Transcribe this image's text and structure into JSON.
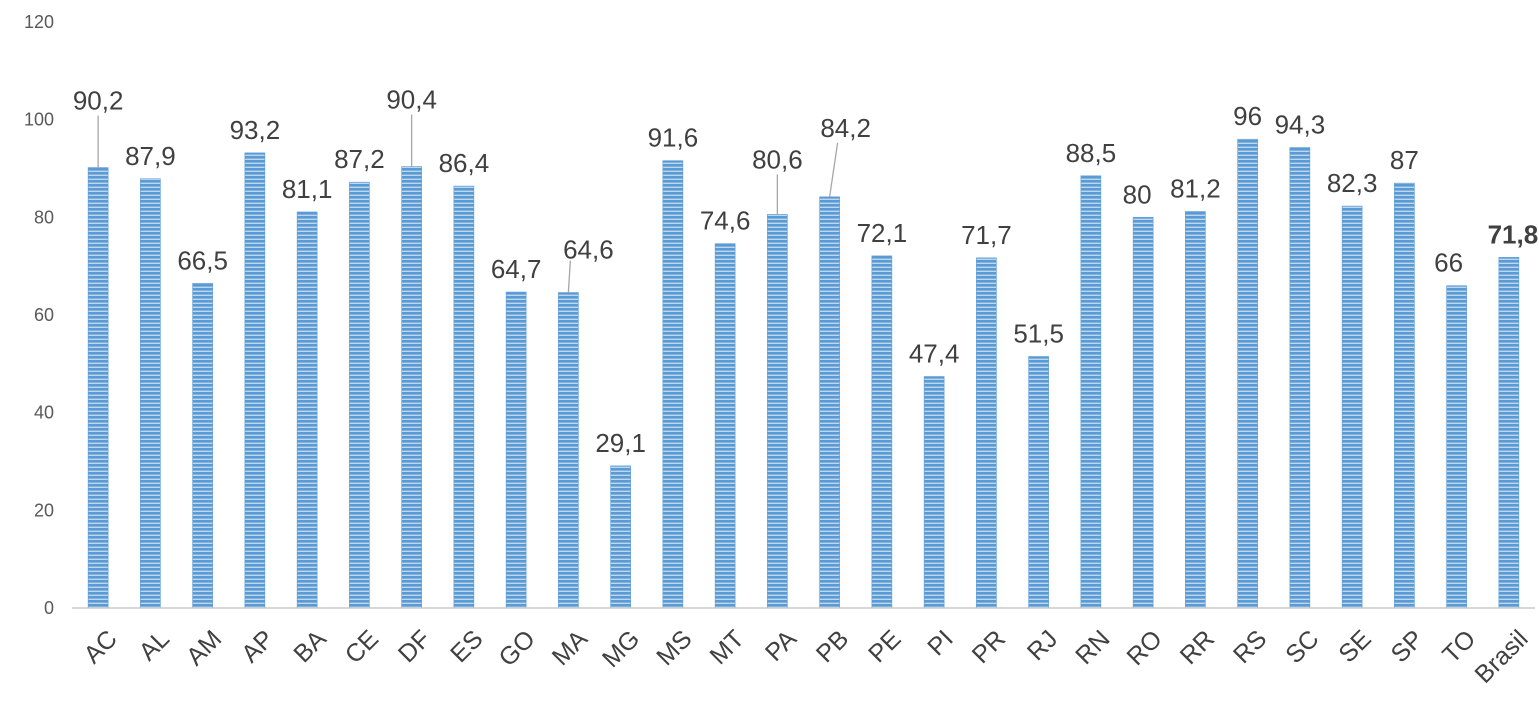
{
  "chart_data": {
    "type": "bar",
    "title": "",
    "xlabel": "",
    "ylabel": "",
    "ylim": [
      0,
      120
    ],
    "yticks": [
      "0",
      "20",
      "40",
      "60",
      "80",
      "100",
      "120"
    ],
    "grid": false,
    "legend": "none",
    "bar_color": "#5B9BD5",
    "bar_stripe_color": "#ffffff",
    "categories": [
      "AC",
      "AL",
      "AM",
      "AP",
      "BA",
      "CE",
      "DF",
      "ES",
      "GO",
      "MA",
      "MG",
      "MS",
      "MT",
      "PA",
      "PB",
      "PE",
      "PI",
      "PR",
      "RJ",
      "RN",
      "RO",
      "RR",
      "RS",
      "SC",
      "SE",
      "SP",
      "TO",
      "Brasil"
    ],
    "values": [
      90.2,
      87.9,
      66.5,
      93.2,
      81.1,
      87.2,
      90.4,
      86.4,
      64.7,
      64.6,
      29.1,
      91.6,
      74.6,
      80.6,
      84.2,
      72.1,
      47.4,
      71.7,
      51.5,
      88.5,
      80,
      81.2,
      96,
      94.3,
      82.3,
      87,
      66,
      71.8
    ],
    "data_labels": [
      "90,2",
      "87,9",
      "66,5",
      "93,2",
      "81,1",
      "87,2",
      "90,4",
      "86,4",
      "64,7",
      "64,6",
      "29,1",
      "91,6",
      "74,6",
      "80,6",
      "84,2",
      "72,1",
      "47,4",
      "71,7",
      "51,5",
      "88,5",
      "80",
      "81,2",
      "96",
      "94,3",
      "82,3",
      "87",
      "66",
      "71,8"
    ],
    "bold_labels": [
      "Brasil"
    ]
  }
}
